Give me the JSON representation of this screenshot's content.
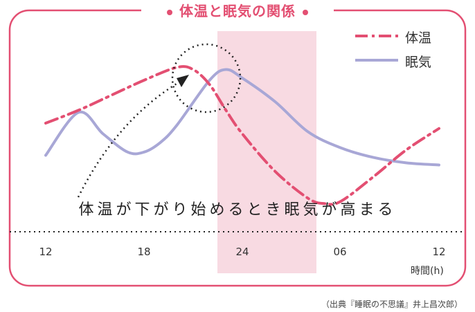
{
  "title": "体温と眠気の関係",
  "annotation": "体温が下がり始めるとき眠気が高まる",
  "source": "（出典『睡眠の不思議』井上昌次郎）",
  "chart_data": {
    "type": "line",
    "x_ticks": [
      "12",
      "18",
      "24",
      "06",
      "12"
    ],
    "x_unit": "時間(h)",
    "highlight_range": [
      "24",
      "06"
    ],
    "colors": {
      "frame": "#e34f72",
      "temperature": "#e34f72",
      "sleepiness": "#a8a7d6",
      "highlight": "#f7d3dd"
    },
    "series": [
      {
        "name": "体温",
        "style": "dash-dot",
        "x": [
          12,
          14,
          16,
          18,
          20,
          21,
          22,
          23,
          24,
          26,
          28,
          29,
          30,
          32,
          34,
          36
        ],
        "y": [
          0.4,
          0.52,
          0.66,
          0.8,
          0.92,
          0.9,
          0.76,
          0.52,
          0.3,
          -0.05,
          -0.3,
          -0.35,
          -0.33,
          -0.1,
          0.15,
          0.35
        ]
      },
      {
        "name": "眠気",
        "style": "solid",
        "x": [
          12,
          14,
          15.5,
          17,
          18,
          19,
          20,
          22,
          23,
          24,
          26,
          28,
          30,
          32,
          34,
          36
        ],
        "y": [
          0.1,
          0.5,
          0.3,
          0.13,
          0.13,
          0.22,
          0.38,
          0.8,
          0.9,
          0.82,
          0.6,
          0.32,
          0.17,
          0.08,
          0.03,
          0.01
        ]
      }
    ]
  }
}
